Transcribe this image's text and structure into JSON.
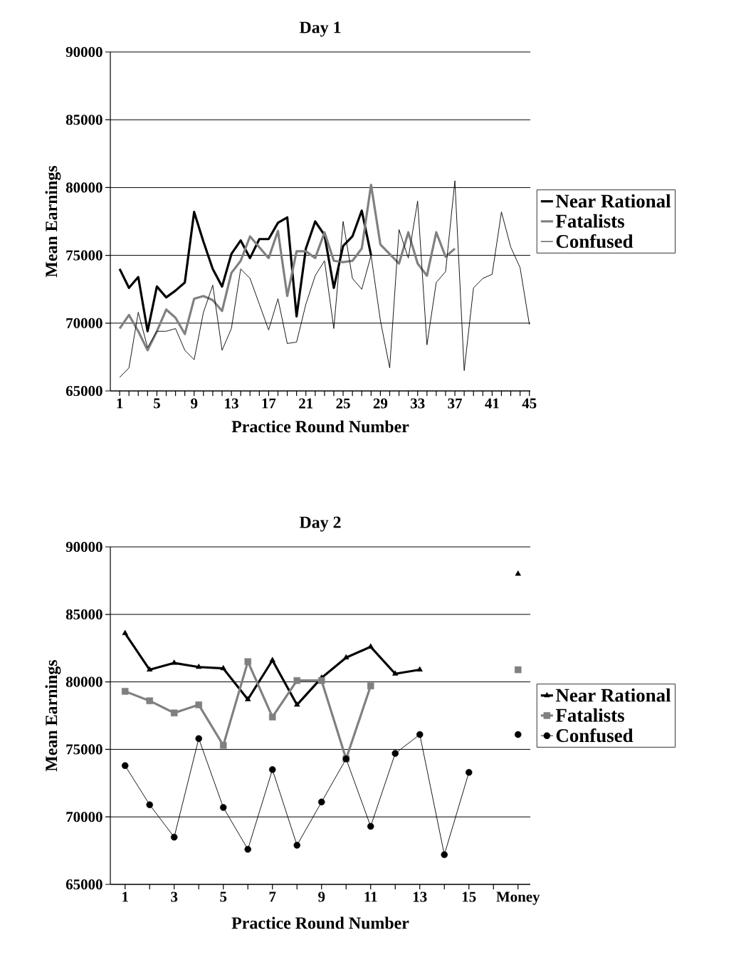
{
  "chart_data": [
    {
      "type": "line",
      "title": "Day 1",
      "xlabel": "Practice Round Number",
      "ylabel": "Mean Earnings",
      "categories": [
        "1",
        null,
        null,
        null,
        "5",
        null,
        null,
        null,
        "9",
        null,
        null,
        null,
        "13",
        null,
        null,
        null,
        "17",
        null,
        null,
        null,
        "21",
        null,
        null,
        null,
        "25",
        null,
        null,
        null,
        "29",
        null,
        null,
        null,
        "33",
        null,
        null,
        null,
        "37",
        null,
        null,
        null,
        "41",
        null,
        null,
        null,
        "45"
      ],
      "ylim": [
        65000,
        90000
      ],
      "yticks": [
        65000,
        70000,
        75000,
        80000,
        85000,
        90000
      ],
      "grid": "y",
      "legend": "right",
      "series": [
        {
          "name": "Near Rational",
          "color": "#000000",
          "values": [
            74000,
            72600,
            73400,
            69400,
            72700,
            71900,
            72400,
            73000,
            78200,
            76000,
            74000,
            72700,
            75100,
            76100,
            74800,
            76200,
            76200,
            77400,
            77800,
            70500,
            75500,
            77500,
            76500,
            72600,
            75700,
            76400,
            78300,
            75000,
            null,
            null,
            null,
            null,
            null,
            null,
            null,
            null,
            null,
            null,
            null,
            null,
            null,
            null,
            null,
            null,
            null
          ]
        },
        {
          "name": "Fatalists",
          "color": "#808080",
          "values": [
            69600,
            70600,
            69400,
            68000,
            69400,
            71000,
            70400,
            69200,
            71800,
            72000,
            71700,
            70900,
            73700,
            74600,
            76400,
            75600,
            74800,
            76800,
            72000,
            75300,
            75300,
            74800,
            76700,
            74600,
            74500,
            74600,
            75500,
            80200,
            75800,
            75100,
            74400,
            76700,
            74400,
            73500,
            76700,
            74900,
            75500,
            null,
            null,
            null,
            null,
            null,
            null,
            null,
            null
          ]
        },
        {
          "name": "Confused",
          "color": "#000000",
          "values": [
            66000,
            66700,
            70800,
            68200,
            69400,
            69400,
            69600,
            68000,
            67300,
            70800,
            72800,
            68000,
            69600,
            74000,
            73300,
            71400,
            69500,
            71800,
            68500,
            68600,
            71400,
            73500,
            74600,
            69600,
            77500,
            73300,
            72500,
            75000,
            70200,
            66700,
            76900,
            74800,
            79000,
            68400,
            73000,
            73800,
            80500,
            66500,
            72600,
            73300,
            73600,
            78200,
            75600,
            74100,
            69900
          ]
        }
      ]
    },
    {
      "type": "line",
      "title": "Day 2",
      "xlabel": "Practice Round Number",
      "ylabel": "Mean Earnings",
      "categories": [
        "1",
        null,
        "3",
        null,
        "5",
        null,
        "7",
        null,
        "9",
        null,
        "11",
        null,
        "13",
        null,
        "15",
        null,
        "Money"
      ],
      "ylim": [
        65000,
        90000
      ],
      "yticks": [
        65000,
        70000,
        75000,
        80000,
        85000,
        90000
      ],
      "grid": "y",
      "legend": "right",
      "series": [
        {
          "name": "Near Rational",
          "color": "#000000",
          "marker": "triangle",
          "values": [
            83600,
            80900,
            81400,
            81100,
            81000,
            78700,
            81600,
            78300,
            80300,
            81800,
            82600,
            80600,
            80900,
            null,
            null,
            null,
            88000
          ]
        },
        {
          "name": "Fatalists",
          "color": "#808080",
          "marker": "square",
          "values": [
            79300,
            78600,
            77700,
            78300,
            75300,
            81500,
            77400,
            80100,
            80100,
            74300,
            79700,
            null,
            null,
            null,
            null,
            null,
            80900
          ]
        },
        {
          "name": "Confused",
          "color": "#000000",
          "marker": "circle",
          "values": [
            73800,
            70900,
            68500,
            75800,
            70700,
            67600,
            73500,
            67900,
            71100,
            74300,
            69300,
            74700,
            76100,
            67200,
            73300,
            null,
            76100
          ]
        }
      ]
    }
  ]
}
